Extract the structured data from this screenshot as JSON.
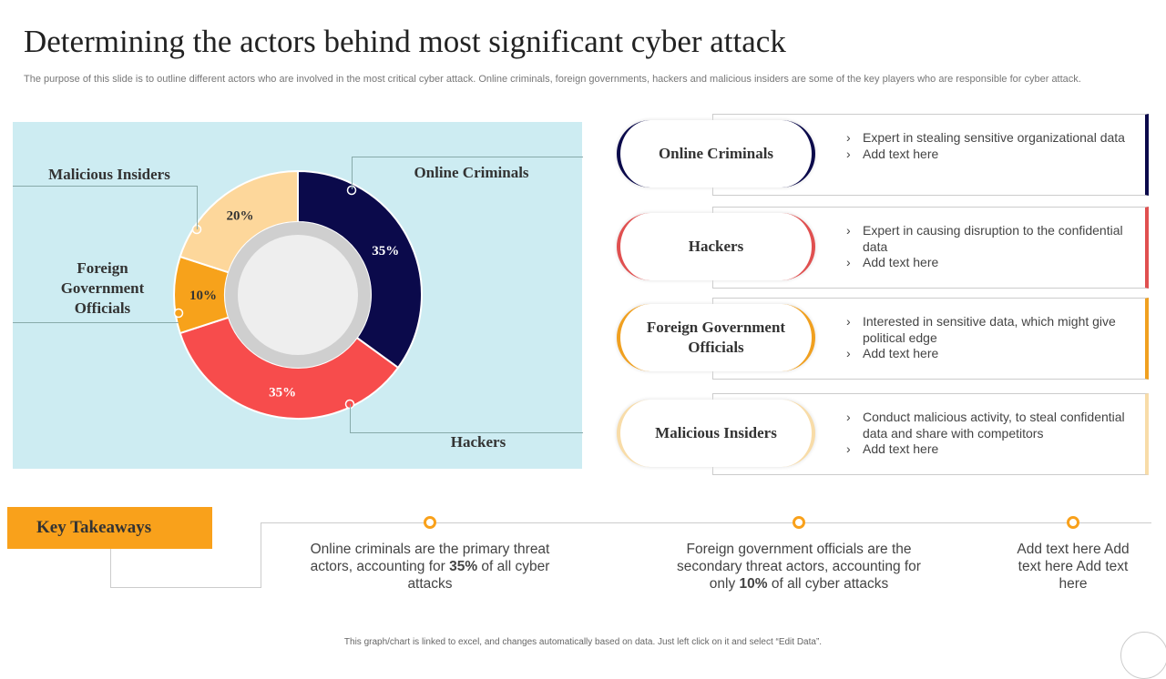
{
  "title": "Determining the actors behind most significant cyber attack",
  "subtitle": "The purpose of this slide is to outline different actors who are involved in the most critical cyber attack. Online criminals, foreign governments, hackers and malicious insiders are some of the key players who are responsible for cyber attack.",
  "chart_data": {
    "type": "pie",
    "donut": true,
    "categories": [
      "Online Criminals",
      "Hackers",
      "Foreign Government Officials",
      "Malicious Insiders"
    ],
    "values": [
      35,
      35,
      10,
      20
    ],
    "data_labels": [
      "35%",
      "35%",
      "10%",
      "20%"
    ],
    "colors": [
      "#0b0a4b",
      "#f74c4c",
      "#f7a21b",
      "#fdd79b"
    ],
    "background": "#cdecf2"
  },
  "actors": [
    {
      "name": "Online Criminals",
      "color": "#0b0a4b",
      "bullets": [
        "Expert in stealing sensitive organizational data",
        "Add text here"
      ]
    },
    {
      "name": "Hackers",
      "color": "#e05050",
      "bullets": [
        "Expert in causing disruption to the confidential data",
        "Add text here"
      ]
    },
    {
      "name": "Foreign Government Officials",
      "color": "#f0a020",
      "bullets": [
        "Interested in sensitive data, which might give political edge",
        "Add text here"
      ]
    },
    {
      "name": "Malicious Insiders",
      "color": "#f8dca8",
      "bullets": [
        "Conduct malicious activity, to steal confidential data and share with competitors",
        "Add text here"
      ]
    }
  ],
  "bullet_glyph": "›",
  "takeaways": {
    "label": "Key Takeaways",
    "items": [
      {
        "pre": "Online criminals are the primary threat actors, accounting for ",
        "bold": "35%",
        "post": " of all cyber attacks"
      },
      {
        "pre": "Foreign government  officials are the secondary threat actors, accounting for only ",
        "bold": "10%",
        "post": " of all cyber attacks"
      },
      {
        "pre": "Add text here Add text here Add text here",
        "bold": "",
        "post": ""
      }
    ],
    "accent": "#f9a11b"
  },
  "footer": "This graph/chart is linked to excel, and changes automatically based on data. Just left click on it and select “Edit Data”."
}
